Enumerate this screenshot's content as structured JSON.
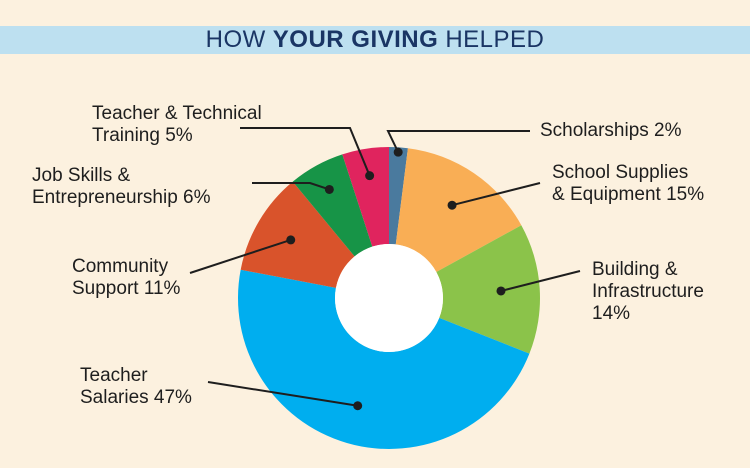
{
  "header": {
    "title_prefix": "HOW",
    "title_bold": "YOUR GIVING",
    "title_suffix": "HELPED"
  },
  "chart_data": {
    "type": "pie",
    "style": "donut",
    "title": "HOW YOUR GIVING HELPED",
    "slices": [
      {
        "key": "scholarships",
        "value": 2,
        "color": "#4A7A9E",
        "label_lines": [
          "Scholarships 2%"
        ]
      },
      {
        "key": "school_supplies",
        "value": 15,
        "color": "#F9AE55",
        "label_lines": [
          "School Supplies",
          "& Equipment 15%"
        ]
      },
      {
        "key": "building",
        "value": 14,
        "color": "#8BC34A",
        "label_lines": [
          "Building &",
          "Infrastructure",
          "14%"
        ]
      },
      {
        "key": "teacher_salaries",
        "value": 47,
        "color": "#00AEEF",
        "label_lines": [
          "Teacher",
          "Salaries 47%"
        ]
      },
      {
        "key": "community_support",
        "value": 11,
        "color": "#D9532B",
        "label_lines": [
          "Community",
          "Support 11%"
        ]
      },
      {
        "key": "job_skills",
        "value": 6,
        "color": "#179447",
        "label_lines": [
          "Job Skills &",
          "Entrepreneurship 6%"
        ]
      },
      {
        "key": "teacher_training",
        "value": 5,
        "color": "#E0245E",
        "label_lines": [
          "Teacher & Technical",
          "Training 5%"
        ]
      }
    ]
  }
}
